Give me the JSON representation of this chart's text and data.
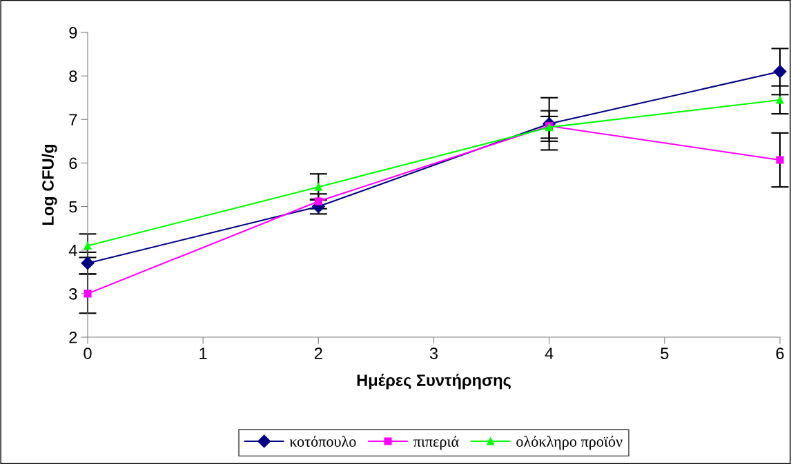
{
  "chart_data": {
    "type": "line",
    "xlabel": "Ημέρες Συντήρησης",
    "ylabel": "Log CFU/g",
    "x": [
      0,
      2,
      4,
      6
    ],
    "xlim": [
      0,
      6
    ],
    "xticks": [
      0,
      1,
      2,
      3,
      4,
      5,
      6
    ],
    "ylim": [
      2,
      9
    ],
    "yticks": [
      2,
      3,
      4,
      5,
      6,
      7,
      8,
      9
    ],
    "grid": false,
    "legend": "bottom",
    "line_style": "solid",
    "series": [
      {
        "name": "κοτόπουλο",
        "color": "#000080",
        "marker": "diamond",
        "values": [
          3.7,
          5.0,
          6.9,
          8.1
        ],
        "errors": [
          0.25,
          0.17,
          0.6,
          0.53
        ]
      },
      {
        "name": "πιπεριά",
        "color": "#ff00ff",
        "marker": "square",
        "values": [
          3.0,
          5.12,
          6.85,
          6.07
        ],
        "errors": [
          0.45,
          0.17,
          0.35,
          0.62
        ]
      },
      {
        "name": "ολόκληρο προϊόν",
        "color": "#00ff00",
        "marker": "triangle",
        "values": [
          4.1,
          5.45,
          6.82,
          7.45
        ],
        "errors": [
          0.27,
          0.3,
          0.25,
          0.32
        ]
      }
    ]
  }
}
